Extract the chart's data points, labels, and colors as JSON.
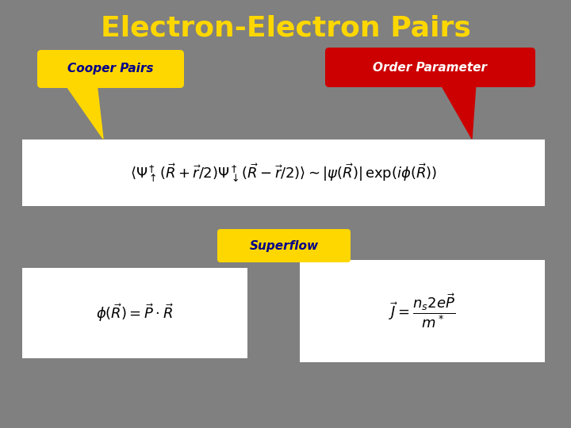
{
  "title": "Electron-Electron Pairs",
  "title_color": "#FFD700",
  "title_fontsize": 26,
  "bg_color": "#808080",
  "cooper_label": "Cooper Pairs",
  "cooper_box_color": "#FFD700",
  "cooper_text_color": "#00008B",
  "order_label": "Order Parameter",
  "order_box_color": "#CC0000",
  "order_text_color": "#FFFFFF",
  "superflow_label": "Superflow",
  "superflow_box_color": "#FFD700",
  "superflow_text_color": "#00008B",
  "eq1": "$\\langle\\Psi^\\dagger_\\uparrow(\\vec{R}+\\vec{r}/2)\\Psi^\\dagger_\\downarrow(\\vec{R}-\\vec{r}/2)\\rangle \\sim |\\psi(\\vec{R})| \\, \\exp(i\\phi(\\vec{R}))$",
  "eq2": "$\\phi(\\vec{R}) = \\vec{P} \\cdot \\vec{R}$",
  "eq3": "$\\vec{J} = \\dfrac{n_s 2e\\vec{P}}{m^*}$",
  "eq_fontsize": 13,
  "label_fontsize": 11,
  "eq_box_color": "#FFFFFF"
}
